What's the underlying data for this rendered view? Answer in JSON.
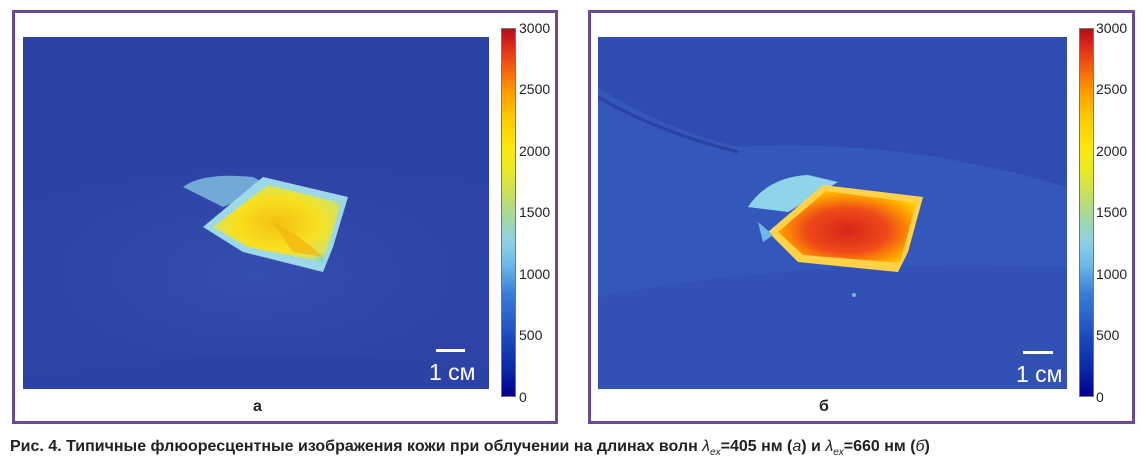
{
  "figure": {
    "panels": [
      {
        "id": "a",
        "label": "а",
        "scale_bar_text": "1 см",
        "colorbar_ticks": [
          "3000",
          "2500",
          "2000",
          "1500",
          "1000",
          "500",
          "0"
        ]
      },
      {
        "id": "b",
        "label": "б",
        "scale_bar_text": "1 см",
        "colorbar_ticks": [
          "3000",
          "2500",
          "2000",
          "1500",
          "1000",
          "500",
          "0"
        ]
      }
    ],
    "caption": {
      "prefix": "Рис. 4. Типичные флюоресцентные изображения кожи при облучении на длинах волн ",
      "lambda": "λ",
      "sub": "ex",
      "value1": "=405 нм (",
      "ref1": "а",
      "mid": ") и ",
      "value2": "=660 нм (",
      "ref2": "б",
      "end": ")"
    }
  },
  "colors": {
    "frame": "#6b4a9a",
    "background_blue": "#2e43a6"
  }
}
